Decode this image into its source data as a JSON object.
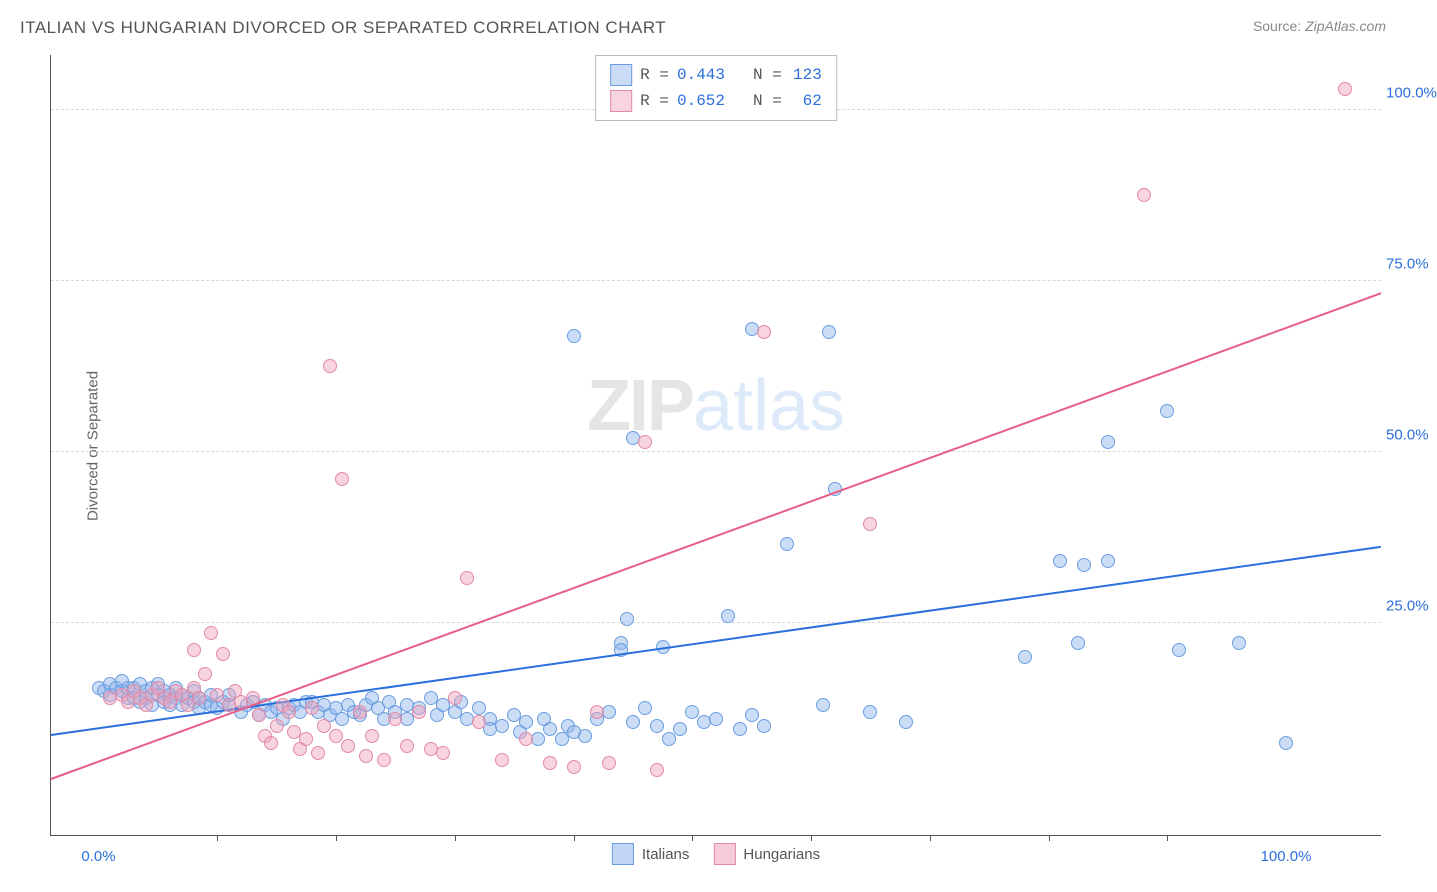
{
  "title": "ITALIAN VS HUNGARIAN DIVORCED OR SEPARATED CORRELATION CHART",
  "source": {
    "label": "Source: ",
    "value": "ZipAtlas.com"
  },
  "ylabel": "Divorced or Separated",
  "watermark": {
    "part1": "ZIP",
    "part2": "atlas"
  },
  "chart": {
    "type": "scatter",
    "background_color": "#ffffff",
    "axis_color": "#555555",
    "grid_color": "#d8d8d8",
    "value_color": "#2a6fdb",
    "xlim": [
      -4,
      108
    ],
    "ylim": [
      -6,
      108
    ],
    "yticks": [
      {
        "v": 25,
        "label": "25.0%"
      },
      {
        "v": 50,
        "label": "50.0%"
      },
      {
        "v": 75,
        "label": "75.0%"
      },
      {
        "v": 100,
        "label": "100.0%"
      }
    ],
    "xticks_major": [
      {
        "v": 0,
        "label": "0.0%"
      },
      {
        "v": 100,
        "label": "100.0%"
      }
    ],
    "xticks_minor": [
      10,
      20,
      30,
      40,
      50,
      60,
      70,
      80,
      90
    ],
    "marker_radius": 7,
    "series": [
      {
        "name": "Italians",
        "fill": "rgba(140,180,235,0.45)",
        "stroke": "#6a9de0",
        "stats": {
          "R_label": "R =",
          "R": "0.443",
          "N_label": "N =",
          "N": "123"
        },
        "trend": {
          "x1": -4,
          "y1": 8.5,
          "x2": 108,
          "y2": 36,
          "color": "#2a6fdb"
        },
        "points": [
          [
            0,
            15.5
          ],
          [
            0.5,
            15
          ],
          [
            1,
            16
          ],
          [
            1,
            14.5
          ],
          [
            1.5,
            15.5
          ],
          [
            2,
            15
          ],
          [
            2,
            16.5
          ],
          [
            2.5,
            14
          ],
          [
            2.5,
            15.5
          ],
          [
            3,
            15.5
          ],
          [
            3,
            14
          ],
          [
            3.5,
            16
          ],
          [
            3.5,
            13.5
          ],
          [
            4,
            15
          ],
          [
            4,
            14
          ],
          [
            4.5,
            15.5
          ],
          [
            4.5,
            13
          ],
          [
            5,
            14.5
          ],
          [
            5,
            16
          ],
          [
            5.5,
            13.5
          ],
          [
            5.5,
            15
          ],
          [
            6,
            14.5
          ],
          [
            6,
            13
          ],
          [
            6.5,
            14
          ],
          [
            6.5,
            15.5
          ],
          [
            7,
            13
          ],
          [
            7,
            14.5
          ],
          [
            7.5,
            14
          ],
          [
            8,
            13.5
          ],
          [
            8,
            15
          ],
          [
            8.5,
            12.5
          ],
          [
            8.5,
            14
          ],
          [
            9,
            13.5
          ],
          [
            9.5,
            13
          ],
          [
            9.5,
            14.5
          ],
          [
            10,
            12.5
          ],
          [
            10.5,
            13.5
          ],
          [
            11,
            13
          ],
          [
            11,
            14.5
          ],
          [
            12,
            12
          ],
          [
            12.5,
            13
          ],
          [
            13,
            13.5
          ],
          [
            13.5,
            11.5
          ],
          [
            14,
            13
          ],
          [
            14.5,
            12
          ],
          [
            15,
            12.5
          ],
          [
            15.5,
            11
          ],
          [
            16,
            12.5
          ],
          [
            16.5,
            13
          ],
          [
            17,
            12
          ],
          [
            17.5,
            13.5
          ],
          [
            18,
            13.5
          ],
          [
            18.5,
            12
          ],
          [
            19,
            13
          ],
          [
            19.5,
            11.5
          ],
          [
            20,
            12.5
          ],
          [
            20.5,
            11
          ],
          [
            21,
            13
          ],
          [
            21.5,
            12
          ],
          [
            22,
            11.5
          ],
          [
            22.5,
            13
          ],
          [
            23,
            14
          ],
          [
            23.5,
            12.5
          ],
          [
            24,
            11
          ],
          [
            24.5,
            13.5
          ],
          [
            25,
            12
          ],
          [
            26,
            11
          ],
          [
            26,
            13
          ],
          [
            27,
            12.5
          ],
          [
            28,
            14
          ],
          [
            28.5,
            11.5
          ],
          [
            29,
            13
          ],
          [
            30,
            12
          ],
          [
            30.5,
            13.5
          ],
          [
            31,
            11
          ],
          [
            32,
            12.5
          ],
          [
            33,
            11
          ],
          [
            33,
            9.5
          ],
          [
            34,
            10
          ],
          [
            35,
            11.5
          ],
          [
            35.5,
            9
          ],
          [
            36,
            10.5
          ],
          [
            37,
            8
          ],
          [
            37.5,
            11
          ],
          [
            38,
            9.5
          ],
          [
            39,
            8
          ],
          [
            39.5,
            10
          ],
          [
            40,
            67
          ],
          [
            40,
            9
          ],
          [
            41,
            8.5
          ],
          [
            42,
            11
          ],
          [
            43,
            12
          ],
          [
            44,
            22
          ],
          [
            44,
            21
          ],
          [
            44.5,
            25.5
          ],
          [
            45,
            52
          ],
          [
            45,
            10.5
          ],
          [
            46,
            12.5
          ],
          [
            47,
            10
          ],
          [
            47.5,
            21.5
          ],
          [
            48,
            8
          ],
          [
            49,
            9.5
          ],
          [
            50,
            12
          ],
          [
            51,
            10.5
          ],
          [
            52,
            11
          ],
          [
            53,
            26
          ],
          [
            54,
            9.5
          ],
          [
            55,
            68
          ],
          [
            55,
            11.5
          ],
          [
            56,
            10
          ],
          [
            58,
            36.5
          ],
          [
            61,
            13
          ],
          [
            61.5,
            67.5
          ],
          [
            62,
            44.5
          ],
          [
            65,
            12
          ],
          [
            68,
            10.5
          ],
          [
            78,
            20
          ],
          [
            81,
            34
          ],
          [
            82.5,
            22
          ],
          [
            83,
            33.5
          ],
          [
            85,
            51.5
          ],
          [
            85,
            34
          ],
          [
            90,
            56
          ],
          [
            91,
            21
          ],
          [
            96,
            22
          ],
          [
            100,
            7.5
          ]
        ]
      },
      {
        "name": "Hungarians",
        "fill": "rgba(240,160,185,0.45)",
        "stroke": "#e28aa8",
        "stats": {
          "R_label": "R =",
          "R": "0.652",
          "N_label": "N =",
          "N": "62"
        },
        "trend": {
          "x1": -4,
          "y1": 2,
          "x2": 108,
          "y2": 73,
          "color": "#e85d87"
        },
        "points": [
          [
            1,
            14
          ],
          [
            2,
            14.5
          ],
          [
            2.5,
            13.5
          ],
          [
            3,
            15
          ],
          [
            3.5,
            14
          ],
          [
            4,
            13
          ],
          [
            4.5,
            14.5
          ],
          [
            5,
            15.5
          ],
          [
            5.5,
            14
          ],
          [
            6,
            13.5
          ],
          [
            6.5,
            15
          ],
          [
            7,
            14.5
          ],
          [
            7.5,
            13
          ],
          [
            8,
            15.5
          ],
          [
            8,
            21
          ],
          [
            8.5,
            14
          ],
          [
            9,
            17.5
          ],
          [
            9.5,
            23.5
          ],
          [
            10,
            14.5
          ],
          [
            10.5,
            20.5
          ],
          [
            11,
            13
          ],
          [
            11.5,
            15
          ],
          [
            12,
            13.5
          ],
          [
            13,
            14
          ],
          [
            13.5,
            11.5
          ],
          [
            14,
            8.5
          ],
          [
            14.5,
            7.5
          ],
          [
            15,
            10
          ],
          [
            15.5,
            13
          ],
          [
            16,
            12
          ],
          [
            16.5,
            9
          ],
          [
            17,
            6.5
          ],
          [
            17.5,
            8
          ],
          [
            18,
            12.5
          ],
          [
            18.5,
            6
          ],
          [
            19,
            10
          ],
          [
            19.5,
            62.5
          ],
          [
            20,
            8.5
          ],
          [
            20.5,
            46
          ],
          [
            21,
            7
          ],
          [
            22,
            12
          ],
          [
            22.5,
            5.5
          ],
          [
            23,
            8.5
          ],
          [
            24,
            5
          ],
          [
            25,
            11
          ],
          [
            26,
            7
          ],
          [
            27,
            12
          ],
          [
            28,
            6.5
          ],
          [
            29,
            6
          ],
          [
            30,
            14
          ],
          [
            31,
            31.5
          ],
          [
            32,
            10.5
          ],
          [
            34,
            5
          ],
          [
            36,
            8
          ],
          [
            38,
            4.5
          ],
          [
            40,
            4
          ],
          [
            42,
            12
          ],
          [
            43,
            4.5
          ],
          [
            46,
            51.5
          ],
          [
            47,
            3.5
          ],
          [
            56,
            67.5
          ],
          [
            65,
            39.5
          ],
          [
            88,
            87.5
          ],
          [
            105,
            103
          ]
        ]
      }
    ]
  },
  "bottom_legend": [
    {
      "label": "Italians",
      "fill": "rgba(140,180,235,0.55)",
      "stroke": "#6a9de0"
    },
    {
      "label": "Hungarians",
      "fill": "rgba(240,160,185,0.55)",
      "stroke": "#e28aa8"
    }
  ]
}
